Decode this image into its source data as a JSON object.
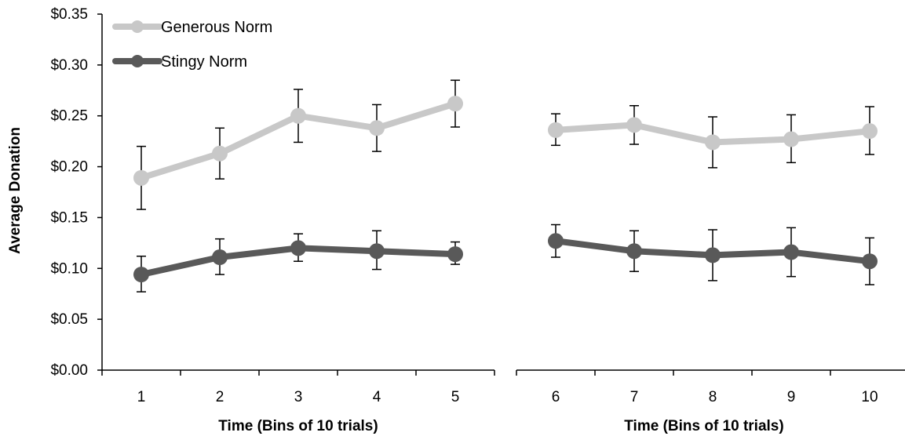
{
  "chart_data": {
    "type": "line",
    "title": "",
    "ylabel": "Average Donation",
    "ylim": [
      0,
      0.35
    ],
    "yticks": [
      "$0.00",
      "$0.05",
      "$0.10",
      "$0.15",
      "$0.20",
      "$0.25",
      "$0.30",
      "$0.35"
    ],
    "ytick_values": [
      0,
      0.05,
      0.1,
      0.15,
      0.2,
      0.25,
      0.3,
      0.35
    ],
    "legend": "top-left",
    "grid": false,
    "panels": [
      {
        "xlabel": "Time (Bins of 10 trials)",
        "categories": [
          "1",
          "2",
          "3",
          "4",
          "5"
        ],
        "series": [
          {
            "name": "Generous Norm",
            "color": "#c8c8c8",
            "values": [
              0.189,
              0.213,
              0.25,
              0.238,
              0.262
            ],
            "err_low": [
              0.158,
              0.188,
              0.224,
              0.215,
              0.239
            ],
            "err_high": [
              0.22,
              0.238,
              0.276,
              0.261,
              0.285
            ]
          },
          {
            "name": "Stingy Norm",
            "color": "#595959",
            "values": [
              0.094,
              0.111,
              0.12,
              0.117,
              0.114
            ],
            "err_low": [
              0.077,
              0.094,
              0.107,
              0.099,
              0.104
            ],
            "err_high": [
              0.112,
              0.129,
              0.134,
              0.137,
              0.126
            ]
          }
        ]
      },
      {
        "xlabel": "Time (Bins of 10 trials)",
        "categories": [
          "6",
          "7",
          "8",
          "9",
          "10"
        ],
        "series": [
          {
            "name": "Generous Norm",
            "color": "#c8c8c8",
            "values": [
              0.236,
              0.241,
              0.224,
              0.227,
              0.235
            ],
            "err_low": [
              0.221,
              0.222,
              0.199,
              0.204,
              0.212
            ],
            "err_high": [
              0.252,
              0.26,
              0.249,
              0.251,
              0.259
            ]
          },
          {
            "name": "Stingy Norm",
            "color": "#595959",
            "values": [
              0.127,
              0.117,
              0.113,
              0.116,
              0.107
            ],
            "err_low": [
              0.111,
              0.097,
              0.088,
              0.092,
              0.084
            ],
            "err_high": [
              0.143,
              0.137,
              0.138,
              0.14,
              0.13
            ]
          }
        ]
      }
    ]
  }
}
